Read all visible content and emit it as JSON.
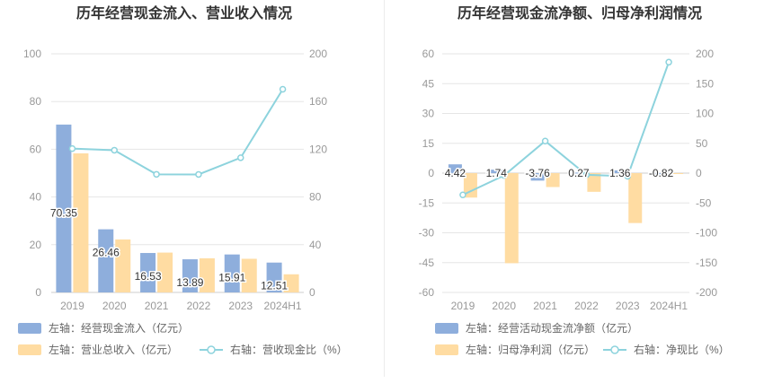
{
  "colors": {
    "bar_primary": "#8eaedc",
    "bar_secondary": "#ffdca2",
    "line": "#8dd3dd",
    "grid": "#e6e6e6",
    "axis_text": "#999999",
    "title_text": "#333333",
    "legend_text": "#666666"
  },
  "chart_data": [
    {
      "type": "bar",
      "title": "历年经营现金流入、营业收入情况",
      "categories": [
        "2019",
        "2020",
        "2021",
        "2022",
        "2023",
        "2024H1"
      ],
      "y_left": {
        "ticks": [
          "0",
          "20",
          "40",
          "60",
          "80",
          "100"
        ],
        "lim": [
          0,
          100
        ]
      },
      "y_right": {
        "ticks": [
          "0",
          "40",
          "80",
          "120",
          "160",
          "200"
        ],
        "lim": [
          0,
          200
        ]
      },
      "series": [
        {
          "name": "左轴：经营现金流入（亿元）",
          "type": "bar",
          "axis": "left",
          "values": [
            70.35,
            26.46,
            16.53,
            13.89,
            15.91,
            12.51
          ],
          "labels": [
            "70.35",
            "26.46",
            "16.53",
            "13.89",
            "15.91",
            "12.51"
          ]
        },
        {
          "name": "左轴：营业总收入（亿元）",
          "type": "bar",
          "axis": "left",
          "values": [
            58.3,
            22.2,
            16.7,
            14.3,
            14.1,
            7.6
          ]
        },
        {
          "name": "右轴：营收现金比（%）",
          "type": "line",
          "axis": "right",
          "values": [
            120.6,
            119.2,
            99.0,
            98.9,
            112.9,
            170.3
          ]
        }
      ]
    },
    {
      "type": "bar",
      "title": "历年经营现金流净额、归母净利润情况",
      "categories": [
        "2019",
        "2020",
        "2021",
        "2022",
        "2023",
        "2024H1"
      ],
      "y_left": {
        "ticks": [
          "-60",
          "-45",
          "-30",
          "-15",
          "0",
          "15",
          "30",
          "45",
          "60"
        ],
        "lim": [
          -60,
          60
        ]
      },
      "y_right": {
        "ticks": [
          "-200",
          "-150",
          "-100",
          "-50",
          "0",
          "50",
          "100",
          "150",
          "200"
        ],
        "lim": [
          -200,
          200
        ]
      },
      "series": [
        {
          "name": "左轴：经营活动现金流净额（亿元）",
          "type": "bar",
          "axis": "left",
          "values": [
            4.42,
            1.74,
            -3.76,
            0.27,
            1.36,
            -0.82
          ],
          "labels": [
            "4.42",
            "1.74",
            "-3.76",
            "0.27",
            "1.36",
            "-0.82"
          ]
        },
        {
          "name": "左轴：归母净利润（亿元）",
          "type": "bar",
          "axis": "left",
          "values": [
            -12.3,
            -45.3,
            -7.0,
            -9.4,
            -25.1,
            -0.45
          ]
        },
        {
          "name": "右轴：净现比（%）",
          "type": "line",
          "axis": "right",
          "values": [
            -36.5,
            -3.9,
            53.8,
            -2.9,
            -5.3,
            186.0
          ]
        }
      ]
    }
  ]
}
